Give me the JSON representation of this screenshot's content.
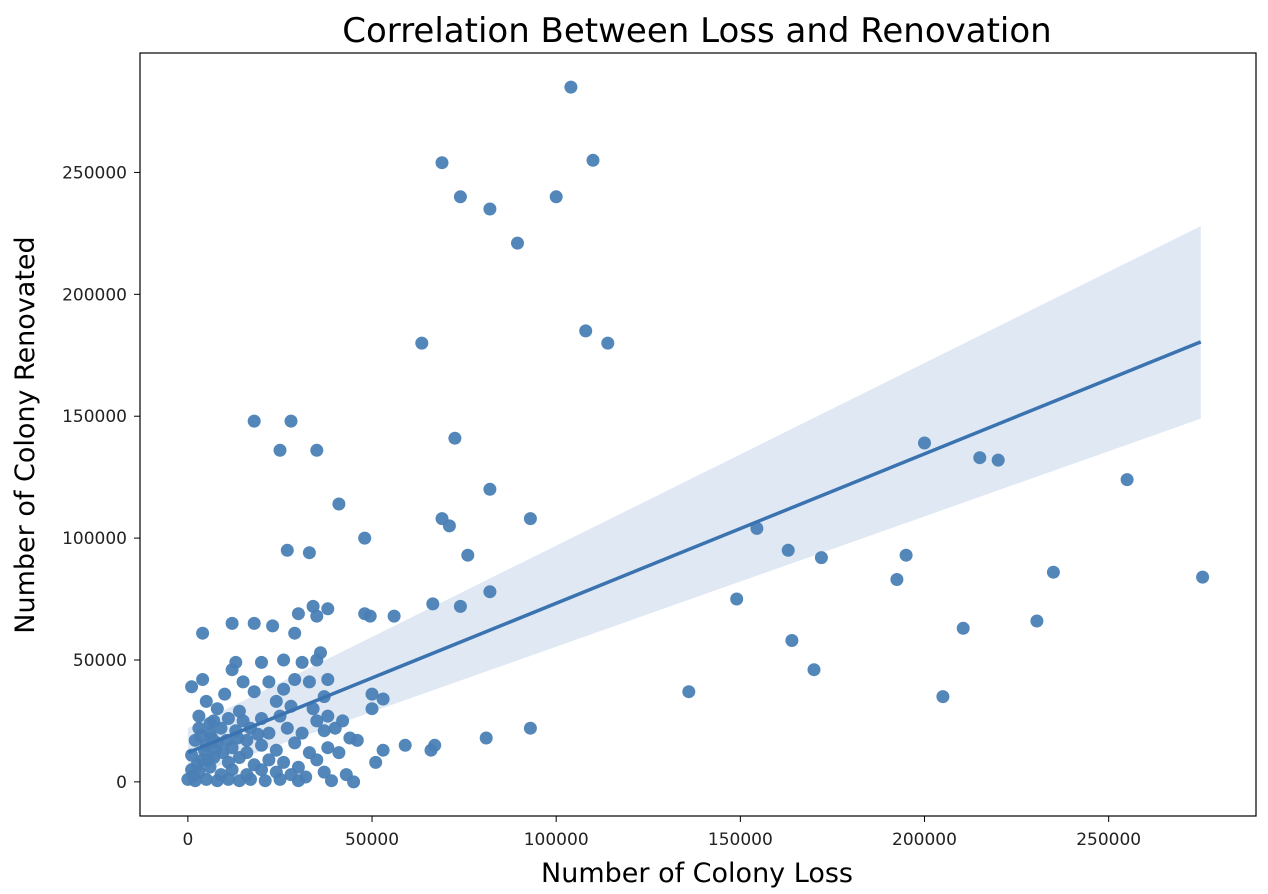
{
  "chart_data": {
    "type": "scatter",
    "title": "Correlation Between Loss and Renovation",
    "xlabel": "Number of Colony Loss",
    "ylabel": "Number of Colony Renovated",
    "xlim": [
      -13000,
      290000
    ],
    "ylim": [
      -14000,
      299000
    ],
    "xticks": [
      0,
      50000,
      100000,
      150000,
      200000,
      250000
    ],
    "yticks": [
      0,
      50000,
      100000,
      150000,
      200000,
      250000
    ],
    "xtick_labels": [
      "0",
      "50000",
      "100000",
      "150000",
      "200000",
      "250000"
    ],
    "ytick_labels": [
      "0",
      "50000",
      "100000",
      "150000",
      "200000",
      "250000"
    ],
    "grid": false,
    "point_color": "#4a7fb5",
    "line_color": "#3a73b0",
    "band_color": "#dbe6f2",
    "regression": {
      "x": [
        0,
        275000
      ],
      "y": [
        12000,
        180500
      ],
      "ci_upper_end": 228000,
      "ci_lower_end": 149000
    },
    "points": [
      [
        104000,
        285000
      ],
      [
        69000,
        254000
      ],
      [
        110000,
        255000
      ],
      [
        74000,
        240000
      ],
      [
        100000,
        240000
      ],
      [
        82000,
        235000
      ],
      [
        89500,
        221000
      ],
      [
        63500,
        180000
      ],
      [
        108000,
        185000
      ],
      [
        114000,
        180000
      ],
      [
        18000,
        148000
      ],
      [
        28000,
        148000
      ],
      [
        72500,
        141000
      ],
      [
        25000,
        136000
      ],
      [
        35000,
        136000
      ],
      [
        200000,
        139000
      ],
      [
        215000,
        133000
      ],
      [
        220000,
        132000
      ],
      [
        255000,
        124000
      ],
      [
        82000,
        120000
      ],
      [
        41000,
        114000
      ],
      [
        69000,
        108000
      ],
      [
        71000,
        105000
      ],
      [
        93000,
        108000
      ],
      [
        154500,
        104000
      ],
      [
        48000,
        100000
      ],
      [
        27000,
        95000
      ],
      [
        33000,
        94000
      ],
      [
        76000,
        93000
      ],
      [
        163000,
        95000
      ],
      [
        172000,
        92000
      ],
      [
        195000,
        93000
      ],
      [
        192500,
        83000
      ],
      [
        235000,
        86000
      ],
      [
        275500,
        84000
      ],
      [
        149000,
        75000
      ],
      [
        66500,
        73000
      ],
      [
        74000,
        72000
      ],
      [
        34000,
        72000
      ],
      [
        38000,
        71000
      ],
      [
        30000,
        69000
      ],
      [
        48000,
        69000
      ],
      [
        49500,
        68000
      ],
      [
        56000,
        68000
      ],
      [
        82000,
        78000
      ],
      [
        35000,
        68000
      ],
      [
        12000,
        65000
      ],
      [
        18000,
        65000
      ],
      [
        23000,
        64000
      ],
      [
        4000,
        61000
      ],
      [
        29000,
        61000
      ],
      [
        164000,
        58000
      ],
      [
        210500,
        63000
      ],
      [
        230500,
        66000
      ],
      [
        170000,
        46000
      ],
      [
        136000,
        37000
      ],
      [
        205000,
        35000
      ],
      [
        13000,
        49000
      ],
      [
        20000,
        49000
      ],
      [
        26000,
        50000
      ],
      [
        31000,
        49000
      ],
      [
        36000,
        53000
      ],
      [
        35000,
        50000
      ],
      [
        12000,
        46000
      ],
      [
        15000,
        41000
      ],
      [
        4000,
        42000
      ],
      [
        1000,
        39000
      ],
      [
        10000,
        36000
      ],
      [
        18000,
        37000
      ],
      [
        22000,
        41000
      ],
      [
        26000,
        38000
      ],
      [
        29000,
        42000
      ],
      [
        33000,
        41000
      ],
      [
        38000,
        42000
      ],
      [
        37000,
        35000
      ],
      [
        50000,
        36000
      ],
      [
        53000,
        34000
      ],
      [
        50000,
        30000
      ],
      [
        5000,
        33000
      ],
      [
        8000,
        30000
      ],
      [
        14000,
        29000
      ],
      [
        24000,
        33000
      ],
      [
        28000,
        31000
      ],
      [
        34000,
        30000
      ],
      [
        3000,
        27000
      ],
      [
        7000,
        25000
      ],
      [
        11000,
        26000
      ],
      [
        15000,
        25000
      ],
      [
        20000,
        26000
      ],
      [
        25000,
        27000
      ],
      [
        35000,
        25000
      ],
      [
        38000,
        27000
      ],
      [
        42000,
        25000
      ],
      [
        3000,
        22000
      ],
      [
        6000,
        20000
      ],
      [
        9000,
        22000
      ],
      [
        13000,
        21000
      ],
      [
        17000,
        22000
      ],
      [
        22000,
        20000
      ],
      [
        27000,
        22000
      ],
      [
        31000,
        20000
      ],
      [
        37000,
        21000
      ],
      [
        40000,
        22000
      ],
      [
        44000,
        18000
      ],
      [
        46000,
        17000
      ],
      [
        2000,
        17000
      ],
      [
        5000,
        15000
      ],
      [
        8000,
        16000
      ],
      [
        12000,
        14000
      ],
      [
        16000,
        17000
      ],
      [
        20000,
        15000
      ],
      [
        24000,
        13000
      ],
      [
        29000,
        16000
      ],
      [
        33000,
        12000
      ],
      [
        38000,
        14000
      ],
      [
        41000,
        12000
      ],
      [
        53000,
        13000
      ],
      [
        59000,
        15000
      ],
      [
        66000,
        13000
      ],
      [
        67000,
        15000
      ],
      [
        81000,
        18000
      ],
      [
        93000,
        22000
      ],
      [
        1000,
        11000
      ],
      [
        4000,
        9000
      ],
      [
        7000,
        10000
      ],
      [
        11000,
        8000
      ],
      [
        14000,
        10000
      ],
      [
        18000,
        7000
      ],
      [
        22000,
        9000
      ],
      [
        26000,
        8000
      ],
      [
        30000,
        6000
      ],
      [
        35000,
        9000
      ],
      [
        51000,
        8000
      ],
      [
        1000,
        5000
      ],
      [
        3000,
        4000
      ],
      [
        6000,
        6000
      ],
      [
        9000,
        3000
      ],
      [
        12000,
        5000
      ],
      [
        16000,
        3000
      ],
      [
        20000,
        5000
      ],
      [
        24000,
        4000
      ],
      [
        28000,
        3000
      ],
      [
        32000,
        2000
      ],
      [
        37000,
        4000
      ],
      [
        43000,
        3000
      ],
      [
        0,
        1000
      ],
      [
        2000,
        500
      ],
      [
        5000,
        1000
      ],
      [
        8000,
        500
      ],
      [
        11000,
        1000
      ],
      [
        14000,
        500
      ],
      [
        17000,
        1000
      ],
      [
        21000,
        500
      ],
      [
        25000,
        1000
      ],
      [
        30000,
        500
      ],
      [
        39000,
        500
      ],
      [
        45000,
        0
      ],
      [
        1500,
        2500
      ],
      [
        4500,
        13000
      ],
      [
        6500,
        18000
      ],
      [
        9500,
        12000
      ],
      [
        3500,
        19000
      ],
      [
        6000,
        24000
      ],
      [
        10500,
        17000
      ],
      [
        2500,
        7000
      ],
      [
        13500,
        18000
      ],
      [
        7500,
        13500
      ],
      [
        5500,
        9000
      ],
      [
        16000,
        12000
      ],
      [
        19000,
        19500
      ]
    ]
  }
}
